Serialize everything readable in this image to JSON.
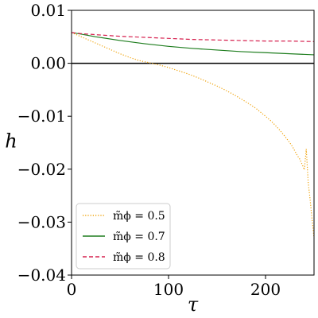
{
  "chart_data": {
    "type": "line",
    "xlabel": "τ",
    "ylabel": "h",
    "xlim": [
      0,
      250
    ],
    "ylim": [
      -0.04,
      0.01
    ],
    "xticks": [
      0,
      100,
      200
    ],
    "xtick_labels": [
      "0",
      "100",
      "200"
    ],
    "yticks": [
      0.01,
      0.0,
      -0.01,
      -0.02,
      -0.03,
      -0.04
    ],
    "ytick_labels": [
      "0.01",
      "0.00",
      "−0.01",
      "−0.02",
      "−0.03",
      "−0.04"
    ],
    "grid": false,
    "legend_position": "lower-left",
    "reference_line_y": 0,
    "series": [
      {
        "name": "m̃ϕ = 0.5",
        "color": "#f0a30a",
        "style": "dotted",
        "x": [
          0,
          10,
          20,
          30,
          40,
          50,
          60,
          70,
          80,
          90,
          100,
          110,
          120,
          130,
          140,
          150,
          160,
          170,
          180,
          190,
          200,
          205,
          210,
          215,
          220,
          225,
          228,
          230,
          233,
          235,
          238,
          240,
          242,
          244,
          246,
          248,
          250
        ],
        "y": [
          0.0058,
          0.005,
          0.0042,
          0.0034,
          0.0026,
          0.0018,
          0.0011,
          0.0005,
          0.0001,
          -0.0003,
          -0.0008,
          -0.0014,
          -0.002,
          -0.0027,
          -0.0035,
          -0.0043,
          -0.0052,
          -0.0062,
          -0.0073,
          -0.0085,
          -0.01,
          -0.0108,
          -0.0117,
          -0.0127,
          -0.0138,
          -0.015,
          -0.0158,
          -0.0165,
          -0.0175,
          -0.018,
          -0.0192,
          -0.0201,
          -0.0162,
          -0.0225,
          -0.0258,
          -0.0295,
          -0.033
        ]
      },
      {
        "name": "m̃ϕ = 0.7",
        "color": "#1e7d1e",
        "style": "solid",
        "x": [
          0,
          10,
          25,
          50,
          75,
          100,
          125,
          150,
          175,
          200,
          225,
          250
        ],
        "y": [
          0.0058,
          0.0055,
          0.005,
          0.0043,
          0.0037,
          0.0032,
          0.0028,
          0.0025,
          0.0022,
          0.002,
          0.0018,
          0.0016
        ]
      },
      {
        "name": "m̃ϕ = 0.8",
        "color": "#d6204e",
        "style": "dashed",
        "x": [
          0,
          10,
          25,
          50,
          75,
          100,
          125,
          150,
          175,
          200,
          225,
          250
        ],
        "y": [
          0.0058,
          0.0056,
          0.0054,
          0.0051,
          0.0049,
          0.0047,
          0.0045,
          0.0044,
          0.0043,
          0.0042,
          0.0042,
          0.0041
        ]
      }
    ]
  }
}
